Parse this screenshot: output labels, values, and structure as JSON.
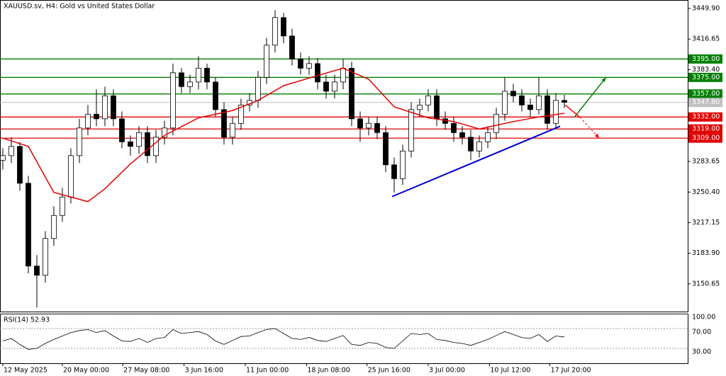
{
  "chart_data": [
    {
      "type": "candlestick",
      "title": "XAUUSD.sv, H4:  Gold vs United States Dollar",
      "xlim": [
        -0.33,
        80.5
      ],
      "xticks": [
        {
          "value": 0,
          "label": "12 May 2025"
        },
        {
          "value": 7,
          "label": "20 May 00:00"
        },
        {
          "value": 14.1,
          "label": "27 May 08:00"
        },
        {
          "value": 21.3,
          "label": "3 Jun 16:00"
        },
        {
          "value": 28.5,
          "label": "11 Jun 00:00"
        },
        {
          "value": 35.7,
          "label": "18 Jun 08:00"
        },
        {
          "value": 42.8,
          "label": "25 Jun 16:00"
        },
        {
          "value": 50,
          "label": "3 Jul 00:00"
        },
        {
          "value": 57.2,
          "label": "10 Jul 12:00"
        },
        {
          "value": 64.3,
          "label": "17 Jul 20:00"
        }
      ],
      "ylim": [
        3119.8,
        3459.1
      ],
      "yticks": [
        {
          "value": 3449.9,
          "label": "3449.90"
        },
        {
          "value": 3416.65,
          "label": "3416.65"
        },
        {
          "value": 3383.4,
          "label": "3383.40"
        },
        {
          "value": 3283.65,
          "label": "3283.65"
        },
        {
          "value": 3250.4,
          "label": "3250.40"
        },
        {
          "value": 3217.15,
          "label": "3217.15"
        },
        {
          "value": 3183.9,
          "label": "3183.90"
        },
        {
          "value": 3150.65,
          "label": "3150.65"
        }
      ],
      "up_color": "#ffffff",
      "down_color": "#000000",
      "x": [
        0,
        1,
        2,
        3,
        4,
        5,
        6,
        7,
        8,
        9,
        10,
        11,
        12,
        13,
        14,
        15,
        16,
        17,
        18,
        19,
        20,
        21,
        22,
        23,
        24,
        25,
        26,
        27,
        28,
        29,
        30,
        31,
        32,
        33,
        34,
        35,
        36,
        37,
        38,
        39,
        40,
        41,
        42,
        43,
        44,
        45,
        46,
        47,
        48,
        49,
        50,
        51,
        52,
        53,
        54,
        55,
        56,
        57,
        58,
        59,
        60,
        61,
        62,
        63,
        64,
        65,
        66
      ],
      "open": [
        3285,
        3290,
        3300,
        3260,
        3170,
        3160,
        3200,
        3225,
        3245,
        3290,
        3320,
        3335,
        3330,
        3355,
        3330,
        3305,
        3300,
        3315,
        3290,
        3310,
        3320,
        3380,
        3365,
        3370,
        3385,
        3370,
        3340,
        3310,
        3325,
        3345,
        3350,
        3375,
        3410,
        3440,
        3420,
        3395,
        3385,
        3390,
        3370,
        3360,
        3370,
        3385,
        3330,
        3320,
        3325,
        3315,
        3280,
        3265,
        3295,
        3340,
        3345,
        3355,
        3330,
        3325,
        3315,
        3310,
        3295,
        3305,
        3315,
        3335,
        3360,
        3355,
        3345,
        3340,
        3355,
        3325,
        3350
      ],
      "high": [
        3298,
        3310,
        3305,
        3268,
        3182,
        3208,
        3235,
        3255,
        3298,
        3330,
        3345,
        3362,
        3365,
        3362,
        3338,
        3312,
        3322,
        3322,
        3318,
        3328,
        3390,
        3385,
        3378,
        3398,
        3390,
        3375,
        3348,
        3332,
        3352,
        3358,
        3382,
        3418,
        3448,
        3445,
        3428,
        3402,
        3398,
        3396,
        3378,
        3378,
        3395,
        3392,
        3338,
        3332,
        3332,
        3322,
        3288,
        3302,
        3348,
        3352,
        3362,
        3362,
        3338,
        3332,
        3322,
        3318,
        3312,
        3322,
        3342,
        3375,
        3368,
        3362,
        3352,
        3375,
        3362,
        3358,
        3356
      ],
      "low": [
        3275,
        3282,
        3252,
        3162,
        3125,
        3152,
        3192,
        3218,
        3238,
        3282,
        3312,
        3322,
        3322,
        3322,
        3298,
        3290,
        3292,
        3282,
        3282,
        3302,
        3312,
        3358,
        3358,
        3362,
        3362,
        3332,
        3302,
        3302,
        3318,
        3338,
        3342,
        3368,
        3402,
        3412,
        3388,
        3378,
        3378,
        3362,
        3352,
        3352,
        3362,
        3322,
        3305,
        3312,
        3308,
        3272,
        3250,
        3258,
        3288,
        3332,
        3338,
        3322,
        3318,
        3305,
        3302,
        3285,
        3288,
        3298,
        3308,
        3328,
        3348,
        3338,
        3332,
        3335,
        3318,
        3320,
        3342
      ],
      "close": [
        3290,
        3300,
        3260,
        3170,
        3160,
        3200,
        3225,
        3245,
        3290,
        3320,
        3335,
        3330,
        3355,
        3330,
        3305,
        3300,
        3315,
        3290,
        3310,
        3320,
        3380,
        3365,
        3370,
        3385,
        3370,
        3340,
        3310,
        3325,
        3345,
        3350,
        3375,
        3410,
        3440,
        3420,
        3395,
        3385,
        3390,
        3370,
        3360,
        3370,
        3385,
        3330,
        3320,
        3325,
        3315,
        3280,
        3265,
        3295,
        3340,
        3345,
        3355,
        3330,
        3325,
        3315,
        3310,
        3295,
        3305,
        3315,
        3335,
        3360,
        3355,
        3345,
        3340,
        3355,
        3325,
        3350,
        3348
      ],
      "ma": {
        "color": "#e00000",
        "x": [
          0,
          3,
          6,
          10,
          12,
          15,
          19,
          23,
          27,
          30,
          33,
          37,
          40,
          43,
          46,
          50,
          53,
          56,
          60,
          63,
          66
        ],
        "values": [
          3309,
          3300,
          3250,
          3240,
          3254,
          3281,
          3312,
          3331,
          3339,
          3350,
          3366,
          3377,
          3385,
          3373,
          3343,
          3331,
          3327,
          3319,
          3327,
          3332,
          3336
        ]
      },
      "levels": [
        {
          "value": 3395,
          "label": "3395.00",
          "color": "#008000"
        },
        {
          "value": 3375,
          "label": "3375.00",
          "color": "#008000"
        },
        {
          "value": 3357,
          "label": "3357.00",
          "color": "#008000"
        },
        {
          "value": 3332,
          "label": "3332.00",
          "color": "#e00000"
        },
        {
          "value": 3319,
          "label": "3319.00",
          "color": "#e00000"
        },
        {
          "value": 3309,
          "label": "3309.00",
          "color": "#e00000"
        }
      ],
      "current": {
        "value": 3347.8,
        "label": "3347.80",
        "color": "#c0c0c0"
      },
      "trendline": {
        "color": "#0000cc",
        "x": [
          45.75,
          65.5
        ],
        "values": [
          3245.5,
          3321.9
        ]
      },
      "arrows": [
        {
          "color": "#008000",
          "dashed": false,
          "x": [
            67.2,
            70.9
          ],
          "values": [
            3332,
            3375
          ]
        },
        {
          "color": "#ff0000",
          "dashed": false,
          "x": [
            66.1,
            67.8
          ],
          "values": [
            3345,
            3332
          ]
        },
        {
          "color": "#ff0000",
          "dashed": true,
          "x": [
            67.8,
            70.1
          ],
          "values": [
            3332,
            3309
          ]
        }
      ]
    },
    {
      "type": "line",
      "title": "RSI(14) 52.93",
      "color": "#000000",
      "ylim": [
        0,
        100
      ],
      "yticks": [
        {
          "value": 100,
          "label": "100.00"
        },
        {
          "value": 70,
          "label": "70.00"
        },
        {
          "value": 30,
          "label": "30.00"
        }
      ],
      "values": [
        45,
        50,
        38,
        28,
        30,
        40,
        48,
        55,
        62,
        66,
        68,
        62,
        66,
        55,
        45,
        44,
        50,
        42,
        50,
        52,
        68,
        60,
        62,
        64,
        58,
        45,
        38,
        46,
        54,
        55,
        62,
        68,
        70,
        60,
        50,
        48,
        52,
        46,
        44,
        50,
        56,
        38,
        36,
        42,
        40,
        32,
        30,
        45,
        60,
        58,
        60,
        48,
        46,
        42,
        40,
        36,
        42,
        48,
        56,
        64,
        58,
        52,
        50,
        58,
        44,
        55,
        52.93
      ]
    }
  ]
}
